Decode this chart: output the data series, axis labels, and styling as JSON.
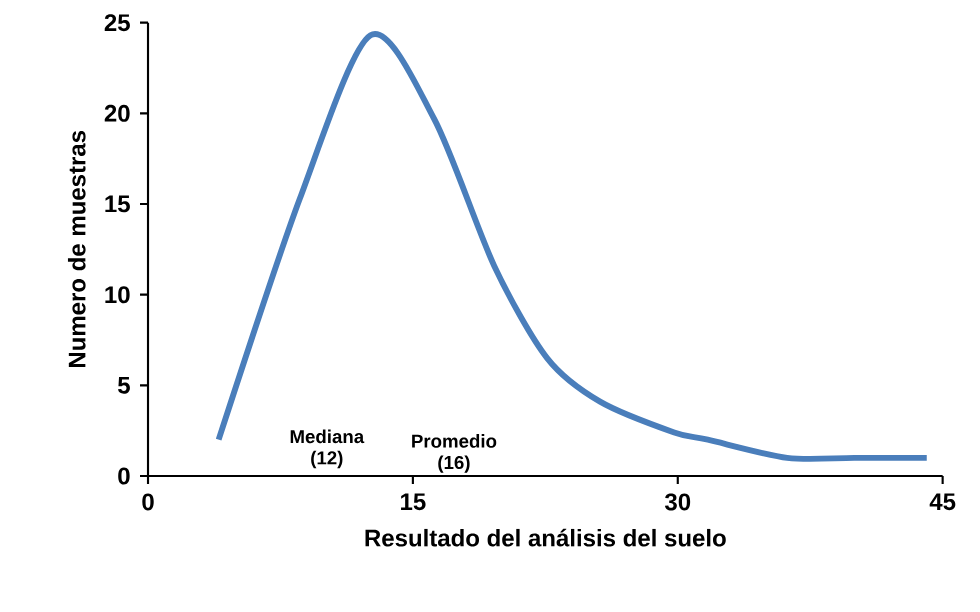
{
  "chart_data": {
    "type": "line",
    "xlabel": "Resultado del análisis del suelo",
    "ylabel": "Numero de muestras",
    "x": [
      4.0,
      8.6,
      12.6,
      16.2,
      19.6,
      22.6,
      25.6,
      29.8,
      31.7,
      36.2,
      40.0,
      44.1
    ],
    "series": [
      {
        "color": "#4a7ebb",
        "values": [
          2.0,
          15.3,
          24.3,
          19.7,
          11.6,
          6.5,
          4.1,
          2.4,
          2.0,
          1.0,
          1.0,
          1.0
        ]
      }
    ],
    "xlim": [
      0,
      45
    ],
    "xticks": [
      0,
      15,
      30,
      45
    ],
    "ylim": [
      0,
      25
    ],
    "yticks": [
      0,
      5,
      10,
      15,
      20,
      25
    ],
    "grid": false,
    "marker": "none",
    "line_style": "solid",
    "annotations": [
      "Mediana (12)",
      "Promedio (16)"
    ]
  }
}
